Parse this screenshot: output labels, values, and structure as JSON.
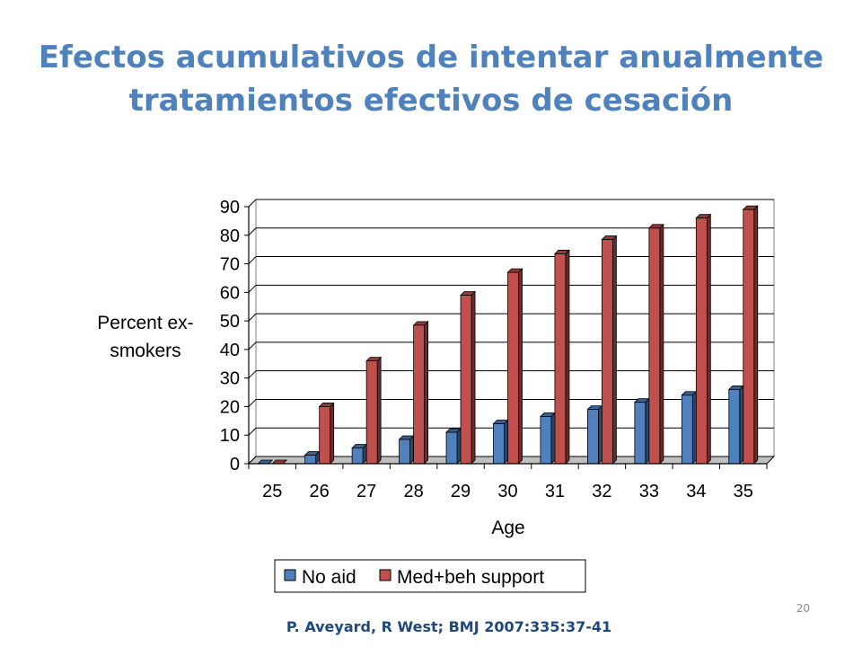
{
  "slide": {
    "title_line1": "Efectos acumulativos de intentar anualmente",
    "title_line2": "tratamientos efectivos de cesación",
    "source": "P. Aveyard, R West; BMJ 2007:335:37-41",
    "page_number": "20"
  },
  "chart_data": {
    "type": "bar",
    "title": "",
    "xlabel": "Age",
    "ylabel_lines": [
      "Percent ex-",
      "smokers"
    ],
    "categories": [
      "25",
      "26",
      "27",
      "28",
      "29",
      "30",
      "31",
      "32",
      "33",
      "34",
      "35"
    ],
    "series": [
      {
        "name": "No aid",
        "color": "#4f81bd",
        "values": [
          0,
          3,
          5.5,
          8.5,
          11,
          14,
          16.5,
          19,
          21.5,
          24,
          26
        ]
      },
      {
        "name": "Med+beh support",
        "color": "#c0504d",
        "values": [
          0,
          20,
          36,
          48.5,
          59,
          67,
          73.5,
          78.5,
          82.5,
          86,
          89
        ]
      }
    ],
    "ylim": [
      0,
      90
    ],
    "yticks": [
      0,
      10,
      20,
      30,
      40,
      50,
      60,
      70,
      80,
      90
    ],
    "grid": true,
    "legend_position": "bottom"
  }
}
